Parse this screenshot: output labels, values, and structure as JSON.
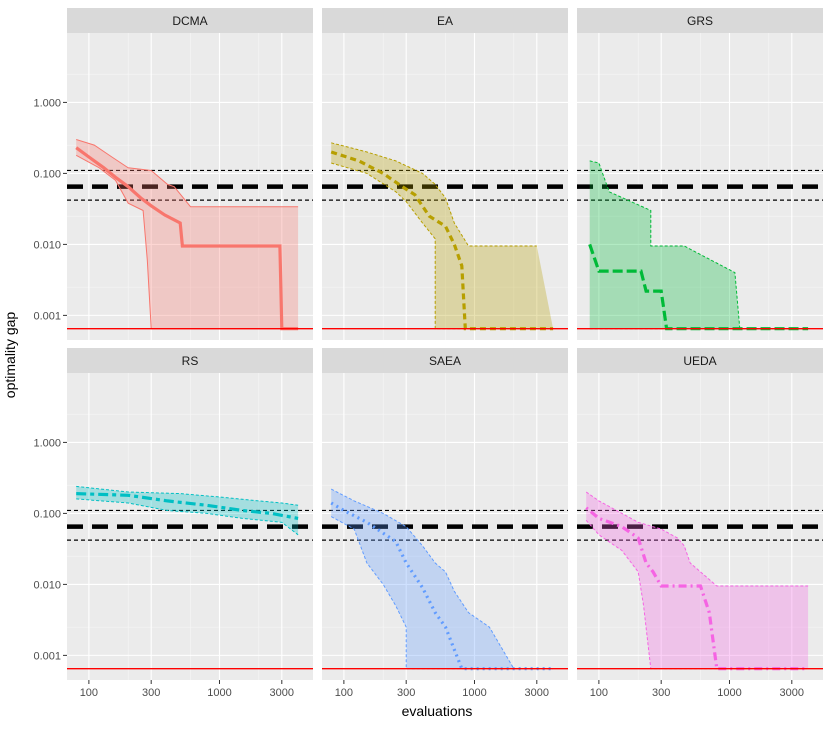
{
  "chart_data": {
    "type": "line",
    "layout": "facet-grid-2x3",
    "xlabel": "evaluations",
    "ylabel": "optimality gap",
    "x_scale": "log10",
    "y_scale": "log10",
    "xlim": [
      68,
      5200
    ],
    "ylim": [
      0.00045,
      9.5
    ],
    "x_ticks": [
      100,
      300,
      1000,
      3000
    ],
    "x_tick_labels": [
      "100",
      "300",
      "1000",
      "3000"
    ],
    "y_ticks": [
      0.001,
      0.01,
      0.1,
      1
    ],
    "y_tick_labels": [
      "0.001",
      "0.010",
      "0.100",
      "1.000"
    ],
    "reference_lines": {
      "optimum": 0.00065,
      "optimum_color": "#FF0000",
      "mean_band": 0.065,
      "band_upper": 0.11,
      "band_lower": 0.042
    },
    "panels": [
      {
        "name": "DCMA",
        "color": "#F8766D",
        "linetype": "solid",
        "median": [
          [
            80,
            0.23
          ],
          [
            100,
            0.17
          ],
          [
            130,
            0.12
          ],
          [
            160,
            0.088
          ],
          [
            200,
            0.065
          ],
          [
            250,
            0.045
          ],
          [
            300,
            0.035
          ],
          [
            380,
            0.026
          ],
          [
            500,
            0.02
          ],
          [
            520,
            0.0095
          ],
          [
            1000,
            0.0095
          ],
          [
            2900,
            0.0095
          ],
          [
            3000,
            0.00065
          ],
          [
            4000,
            0.00065
          ]
        ],
        "upper": [
          [
            80,
            0.3
          ],
          [
            110,
            0.25
          ],
          [
            150,
            0.17
          ],
          [
            200,
            0.12
          ],
          [
            300,
            0.11
          ],
          [
            400,
            0.07
          ],
          [
            450,
            0.065
          ],
          [
            600,
            0.034
          ],
          [
            1000,
            0.034
          ],
          [
            4000,
            0.034
          ]
        ],
        "lower": [
          [
            80,
            0.18
          ],
          [
            120,
            0.12
          ],
          [
            160,
            0.08
          ],
          [
            200,
            0.038
          ],
          [
            260,
            0.03
          ],
          [
            280,
            0.006
          ],
          [
            300,
            0.00065
          ],
          [
            4000,
            0.00065
          ]
        ]
      },
      {
        "name": "EA",
        "color": "#B79F00",
        "linetype": "dashed",
        "median": [
          [
            80,
            0.2
          ],
          [
            130,
            0.15
          ],
          [
            200,
            0.1
          ],
          [
            280,
            0.065
          ],
          [
            350,
            0.05
          ],
          [
            450,
            0.025
          ],
          [
            600,
            0.018
          ],
          [
            700,
            0.01
          ],
          [
            800,
            0.005
          ],
          [
            850,
            0.00065
          ],
          [
            4000,
            0.00065
          ]
        ],
        "upper": [
          [
            80,
            0.27
          ],
          [
            150,
            0.2
          ],
          [
            250,
            0.15
          ],
          [
            400,
            0.1
          ],
          [
            500,
            0.07
          ],
          [
            600,
            0.045
          ],
          [
            700,
            0.02
          ],
          [
            900,
            0.0095
          ],
          [
            1500,
            0.0095
          ],
          [
            3000,
            0.0095
          ]
        ],
        "lower": [
          [
            80,
            0.14
          ],
          [
            150,
            0.1
          ],
          [
            250,
            0.055
          ],
          [
            300,
            0.04
          ],
          [
            400,
            0.02
          ],
          [
            500,
            0.012
          ],
          [
            500,
            0.00065
          ],
          [
            4000,
            0.00065
          ]
        ]
      },
      {
        "name": "GRS",
        "color": "#00BA38",
        "linetype": "longdash",
        "median": [
          [
            85,
            0.01
          ],
          [
            100,
            0.0042
          ],
          [
            210,
            0.0042
          ],
          [
            230,
            0.0022
          ],
          [
            300,
            0.0022
          ],
          [
            330,
            0.00065
          ],
          [
            4000,
            0.00065
          ]
        ],
        "upper": [
          [
            85,
            0.15
          ],
          [
            100,
            0.14
          ],
          [
            120,
            0.055
          ],
          [
            250,
            0.03
          ],
          [
            250,
            0.0095
          ],
          [
            450,
            0.0095
          ],
          [
            1100,
            0.004
          ],
          [
            1200,
            0.00065
          ],
          [
            4000,
            0.00065
          ]
        ],
        "lower": [
          [
            85,
            0.00065
          ],
          [
            4000,
            0.00065
          ]
        ]
      },
      {
        "name": "RS",
        "color": "#00BFC4",
        "linetype": "twodash",
        "median": [
          [
            80,
            0.19
          ],
          [
            200,
            0.18
          ],
          [
            400,
            0.15
          ],
          [
            800,
            0.13
          ],
          [
            1500,
            0.11
          ],
          [
            2500,
            0.1
          ],
          [
            4000,
            0.085
          ]
        ],
        "upper": [
          [
            80,
            0.24
          ],
          [
            200,
            0.2
          ],
          [
            500,
            0.19
          ],
          [
            1000,
            0.17
          ],
          [
            2000,
            0.15
          ],
          [
            3000,
            0.14
          ],
          [
            4000,
            0.13
          ]
        ],
        "lower": [
          [
            80,
            0.16
          ],
          [
            200,
            0.14
          ],
          [
            400,
            0.11
          ],
          [
            800,
            0.1
          ],
          [
            1500,
            0.085
          ],
          [
            3000,
            0.075
          ],
          [
            4000,
            0.05
          ]
        ]
      },
      {
        "name": "SAEA",
        "color": "#619CFF",
        "linetype": "dotted",
        "median": [
          [
            80,
            0.14
          ],
          [
            100,
            0.11
          ],
          [
            150,
            0.075
          ],
          [
            250,
            0.04
          ],
          [
            300,
            0.02
          ],
          [
            400,
            0.009
          ],
          [
            500,
            0.004
          ],
          [
            600,
            0.0025
          ],
          [
            800,
            0.00065
          ],
          [
            4000,
            0.00065
          ]
        ],
        "upper": [
          [
            80,
            0.22
          ],
          [
            120,
            0.15
          ],
          [
            200,
            0.1
          ],
          [
            300,
            0.065
          ],
          [
            400,
            0.035
          ],
          [
            500,
            0.02
          ],
          [
            600,
            0.015
          ],
          [
            700,
            0.008
          ],
          [
            900,
            0.004
          ],
          [
            1300,
            0.0025
          ],
          [
            2000,
            0.00065
          ],
          [
            3000,
            0.00065
          ]
        ],
        "lower": [
          [
            80,
            0.09
          ],
          [
            120,
            0.06
          ],
          [
            150,
            0.02
          ],
          [
            200,
            0.01
          ],
          [
            250,
            0.005
          ],
          [
            300,
            0.0025
          ],
          [
            300,
            0.00065
          ],
          [
            4000,
            0.00065
          ]
        ]
      },
      {
        "name": "UEDA",
        "color": "#F564E3",
        "linetype": "dotdash",
        "median": [
          [
            80,
            0.12
          ],
          [
            100,
            0.085
          ],
          [
            150,
            0.065
          ],
          [
            200,
            0.045
          ],
          [
            230,
            0.02
          ],
          [
            260,
            0.015
          ],
          [
            300,
            0.0095
          ],
          [
            500,
            0.0095
          ],
          [
            600,
            0.0095
          ],
          [
            700,
            0.004
          ],
          [
            800,
            0.00065
          ],
          [
            4000,
            0.00065
          ]
        ],
        "upper": [
          [
            80,
            0.2
          ],
          [
            100,
            0.15
          ],
          [
            150,
            0.1
          ],
          [
            200,
            0.075
          ],
          [
            300,
            0.06
          ],
          [
            400,
            0.045
          ],
          [
            450,
            0.035
          ],
          [
            500,
            0.02
          ],
          [
            600,
            0.015
          ],
          [
            800,
            0.0095
          ],
          [
            1500,
            0.0095
          ],
          [
            4000,
            0.0095
          ]
        ],
        "lower": [
          [
            80,
            0.08
          ],
          [
            100,
            0.05
          ],
          [
            150,
            0.03
          ],
          [
            200,
            0.015
          ],
          [
            220,
            0.005
          ],
          [
            250,
            0.00065
          ],
          [
            4000,
            0.00065
          ]
        ]
      }
    ]
  }
}
